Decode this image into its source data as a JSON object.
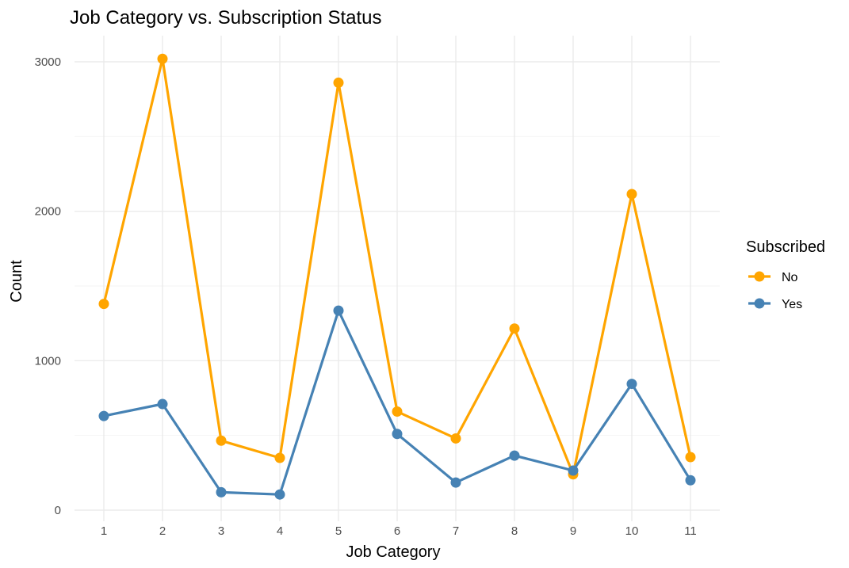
{
  "chart_data": {
    "type": "line",
    "title": "Job Category vs. Subscription Status",
    "xlabel": "Job Category",
    "ylabel": "Count",
    "x": [
      1,
      2,
      3,
      4,
      5,
      6,
      7,
      8,
      9,
      10,
      11
    ],
    "x_tick_labels": [
      "1",
      "2",
      "3",
      "4",
      "5",
      "6",
      "7",
      "8",
      "9",
      "10",
      "11"
    ],
    "ylim": [
      0,
      3020
    ],
    "y_ticks": [
      0,
      1000,
      2000,
      3000
    ],
    "y_tick_labels": [
      "0",
      "1000",
      "2000",
      "3000"
    ],
    "grid": true,
    "legend": {
      "title": "Subscribed",
      "position": "right"
    },
    "series": [
      {
        "name": "No",
        "color": "#ffa500",
        "values": [
          1380,
          3020,
          465,
          350,
          2860,
          660,
          480,
          1215,
          240,
          2115,
          355
        ]
      },
      {
        "name": "Yes",
        "color": "#4682b4",
        "values": [
          630,
          710,
          120,
          105,
          1335,
          510,
          185,
          365,
          265,
          845,
          200
        ]
      }
    ]
  }
}
